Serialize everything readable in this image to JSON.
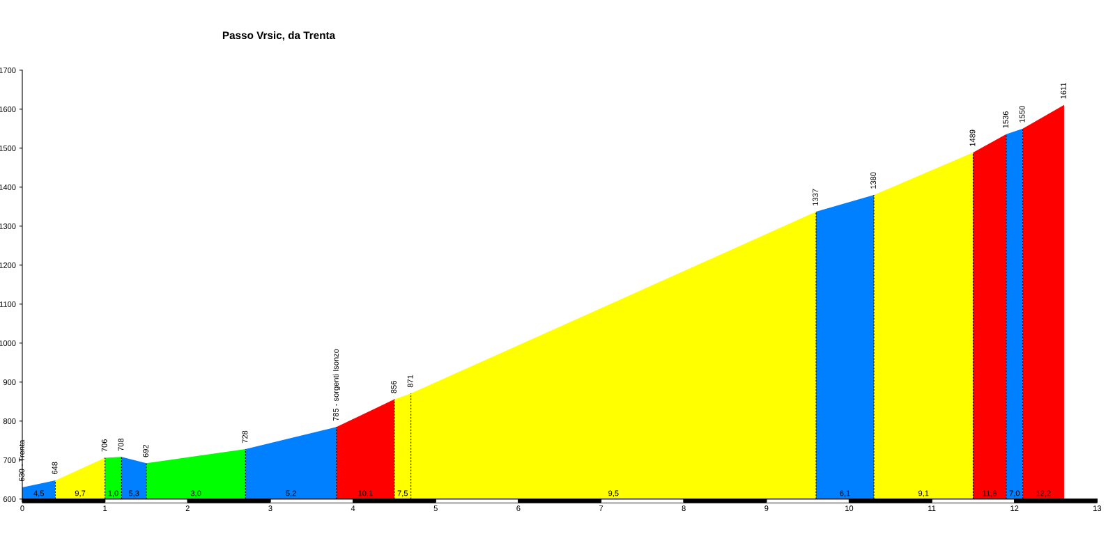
{
  "chart_data": {
    "type": "area",
    "title": "Passo Vrsic, da Trenta",
    "series": [
      {
        "color": "#0080ff",
        "x": [
          0,
          0.4
        ],
        "values": [
          630,
          648
        ]
      },
      {
        "color": "#ffff00",
        "x": [
          0.4,
          1.0
        ],
        "values": [
          648,
          706
        ]
      },
      {
        "color": "#00ff00",
        "x": [
          1.0,
          1.2
        ],
        "values": [
          706,
          708
        ]
      },
      {
        "color": "#0080ff",
        "x": [
          1.2,
          1.5
        ],
        "values": [
          708,
          692
        ]
      },
      {
        "color": "#00ff00",
        "x": [
          1.5,
          2.7
        ],
        "values": [
          692,
          728
        ]
      },
      {
        "color": "#0080ff",
        "x": [
          2.7,
          3.8
        ],
        "values": [
          728,
          785
        ]
      },
      {
        "color": "#ff0000",
        "x": [
          3.8,
          4.5
        ],
        "values": [
          785,
          856
        ]
      },
      {
        "color": "#ffff00",
        "x": [
          4.5,
          4.7,
          9.6
        ],
        "values": [
          856,
          871,
          1337
        ]
      },
      {
        "color": "#0080ff",
        "x": [
          9.6,
          10.3
        ],
        "values": [
          1337,
          1380
        ]
      },
      {
        "color": "#ffff00",
        "x": [
          10.3,
          11.5
        ],
        "values": [
          1380,
          1489
        ]
      },
      {
        "color": "#ff0000",
        "x": [
          11.5,
          11.9
        ],
        "values": [
          1489,
          1536
        ]
      },
      {
        "color": "#0080ff",
        "x": [
          11.9,
          12.1
        ],
        "values": [
          1536,
          1550
        ]
      },
      {
        "color": "#ff0000",
        "x": [
          12.1,
          12.6
        ],
        "values": [
          1550,
          1611
        ]
      }
    ],
    "annotations": [
      {
        "text": "630 - Trenta",
        "x": 0,
        "y": 630
      },
      {
        "text": "648",
        "x": 0.4,
        "y": 648
      },
      {
        "text": "706",
        "x": 1.0,
        "y": 706
      },
      {
        "text": "708",
        "x": 1.2,
        "y": 708
      },
      {
        "text": "692",
        "x": 1.5,
        "y": 692
      },
      {
        "text": "728",
        "x": 2.7,
        "y": 728
      },
      {
        "text": "785 - sorgenti Isonzo",
        "x": 3.8,
        "y": 785
      },
      {
        "text": "856",
        "x": 4.5,
        "y": 856
      },
      {
        "text": "871",
        "x": 4.7,
        "y": 871
      },
      {
        "text": "1337",
        "x": 9.6,
        "y": 1337
      },
      {
        "text": "1380",
        "x": 10.3,
        "y": 1380
      },
      {
        "text": "1489",
        "x": 11.5,
        "y": 1489
      },
      {
        "text": "1536",
        "x": 11.9,
        "y": 1536
      },
      {
        "text": "1550",
        "x": 12.1,
        "y": 1550
      },
      {
        "text": "1611",
        "x": 12.6,
        "y": 1611
      },
      {
        "text": "4,5",
        "x": 0.2,
        "y": 600
      },
      {
        "text": "9,7",
        "x": 0.7,
        "y": 600
      },
      {
        "text": "1,0",
        "x": 1.1,
        "y": 600
      },
      {
        "text": "5,3",
        "x": 1.35,
        "y": 600
      },
      {
        "text": "3,0",
        "x": 2.1,
        "y": 600
      },
      {
        "text": "5,2",
        "x": 3.25,
        "y": 600
      },
      {
        "text": "10,1",
        "x": 4.15,
        "y": 600
      },
      {
        "text": "7,5",
        "x": 4.6,
        "y": 600
      },
      {
        "text": "9,5",
        "x": 7.15,
        "y": 600
      },
      {
        "text": "6,1",
        "x": 9.95,
        "y": 600
      },
      {
        "text": "9,1",
        "x": 10.9,
        "y": 600
      },
      {
        "text": "11,8",
        "x": 11.7,
        "y": 600
      },
      {
        "text": "7,0",
        "x": 12.0,
        "y": 600
      },
      {
        "text": "12,2",
        "x": 12.35,
        "y": 600
      }
    ],
    "xlim": [
      0,
      13
    ],
    "xticks": [
      0,
      1,
      2,
      3,
      4,
      5,
      6,
      7,
      8,
      9,
      10,
      11,
      12,
      13
    ],
    "ylim": [
      600,
      1700
    ],
    "yticks": [
      600,
      700,
      800,
      900,
      1000,
      1100,
      1200,
      1300,
      1400,
      1500,
      1600,
      1700
    ],
    "grid": false
  }
}
